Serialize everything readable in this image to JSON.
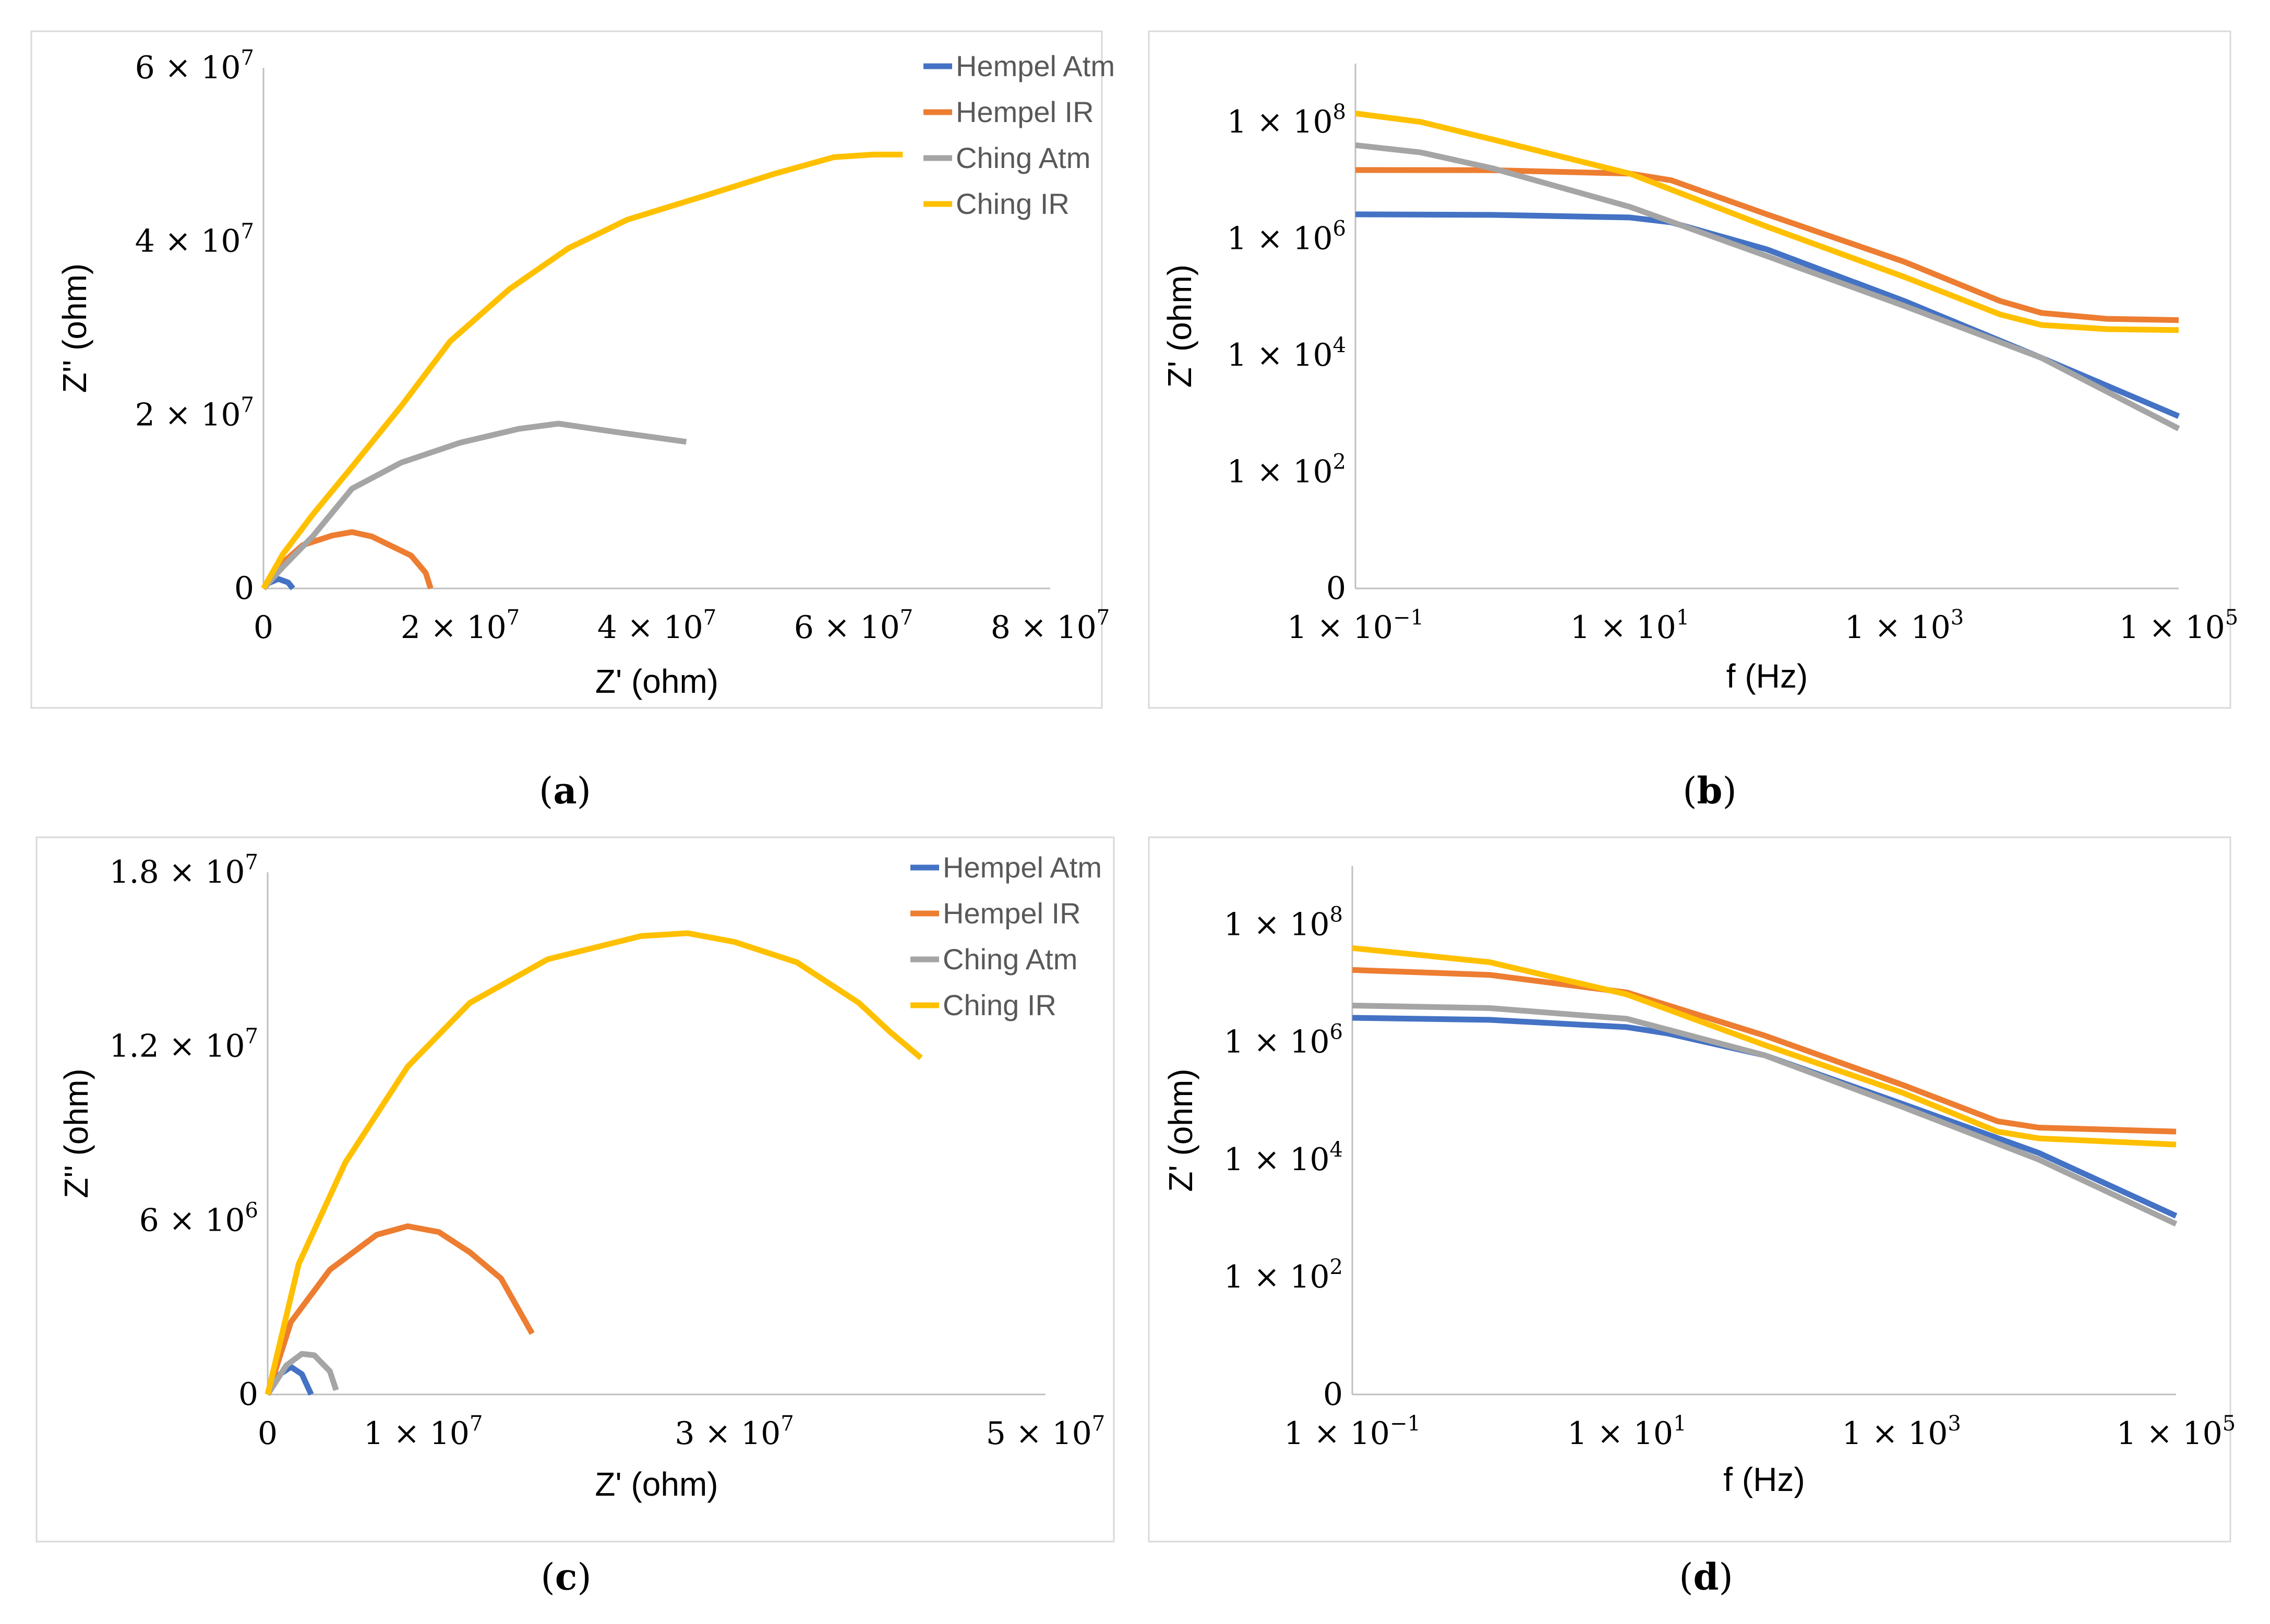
{
  "colors": {
    "Hempel Atm": "#4472c4",
    "Hempel IR": "#ed7d31",
    "Ching Atm": "#a5a5a5",
    "Ching IR": "#ffc000"
  },
  "captions": [
    "a",
    "b",
    "c",
    "d"
  ],
  "chart_data": [
    {
      "id": "a",
      "type": "line",
      "xlabel": "Z' (ohm)",
      "ylabel": "Z'' (ohm)",
      "xlim": [
        0,
        80000000
      ],
      "ylim": [
        0,
        60000000
      ],
      "x_ticks": [
        {
          "value": 0,
          "label": "0",
          "mant": "",
          "exp": ""
        },
        {
          "value": 20000000,
          "label": "",
          "mant": "2 × 10",
          "exp": "7"
        },
        {
          "value": 40000000,
          "label": "",
          "mant": "4 × 10",
          "exp": "7"
        },
        {
          "value": 60000000,
          "label": "",
          "mant": "6 × 10",
          "exp": "7"
        },
        {
          "value": 80000000,
          "label": "",
          "mant": "8 × 10",
          "exp": "7"
        }
      ],
      "y_ticks": [
        {
          "value": 0,
          "label": "0",
          "mant": "",
          "exp": ""
        },
        {
          "value": 20000000,
          "label": "",
          "mant": "2 × 10",
          "exp": "7"
        },
        {
          "value": 40000000,
          "label": "",
          "mant": "4 × 10",
          "exp": "7"
        },
        {
          "value": 60000000,
          "label": "",
          "mant": "6 × 10",
          "exp": "7"
        }
      ],
      "legend": [
        "Hempel Atm",
        "Hempel IR",
        "Ching Atm",
        "Ching IR"
      ],
      "series": [
        {
          "name": "Hempel Atm",
          "points": [
            [
              0,
              0
            ],
            [
              500000,
              600000
            ],
            [
              1500000,
              1100000
            ],
            [
              2500000,
              700000
            ],
            [
              3000000,
              0
            ]
          ]
        },
        {
          "name": "Hempel IR",
          "points": [
            [
              0,
              0
            ],
            [
              1500000,
              2500000
            ],
            [
              4000000,
              5000000
            ],
            [
              7000000,
              6100000
            ],
            [
              9000000,
              6500000
            ],
            [
              11000000,
              6000000
            ],
            [
              13000000,
              4900000
            ],
            [
              15000000,
              3800000
            ],
            [
              16500000,
              1800000
            ],
            [
              17000000,
              0
            ]
          ]
        },
        {
          "name": "Ching Atm",
          "points": [
            [
              0,
              0
            ],
            [
              2000000,
              2500000
            ],
            [
              5000000,
              6000000
            ],
            [
              9000000,
              11500000
            ],
            [
              14000000,
              14500000
            ],
            [
              20000000,
              16800000
            ],
            [
              26000000,
              18400000
            ],
            [
              30000000,
              19000000
            ],
            [
              36000000,
              18000000
            ],
            [
              43000000,
              16900000
            ]
          ]
        },
        {
          "name": "Ching IR",
          "points": [
            [
              0,
              0
            ],
            [
              2000000,
              4000000
            ],
            [
              5000000,
              8500000
            ],
            [
              9000000,
              14000000
            ],
            [
              14000000,
              21000000
            ],
            [
              19000000,
              28500000
            ],
            [
              25000000,
              34500000
            ],
            [
              31000000,
              39200000
            ],
            [
              37000000,
              42500000
            ],
            [
              45000000,
              45300000
            ],
            [
              52000000,
              47800000
            ],
            [
              58000000,
              49700000
            ],
            [
              62000000,
              50000000
            ],
            [
              65000000,
              50000000
            ]
          ]
        }
      ]
    },
    {
      "id": "b",
      "type": "line",
      "xlabel": "f (Hz)",
      "ylabel": "Z' (ohm)",
      "xscale": "log",
      "yscale": "log",
      "xlim": [
        0.1,
        100000
      ],
      "ylim": [
        1,
        1000000000
      ],
      "x_ticks": [
        {
          "value": 0.1,
          "label": "",
          "mant": "1 × 10",
          "exp": "−1"
        },
        {
          "value": 10,
          "label": "",
          "mant": "1 × 10",
          "exp": "1"
        },
        {
          "value": 1000,
          "label": "",
          "mant": "1 × 10",
          "exp": "3"
        },
        {
          "value": 100000,
          "label": "",
          "mant": "1 × 10",
          "exp": "5"
        }
      ],
      "y_ticks": [
        {
          "value": 1,
          "label": "0",
          "mant": "",
          "exp": ""
        },
        {
          "value": 100,
          "label": "",
          "mant": "1 × 10",
          "exp": "2"
        },
        {
          "value": 10000,
          "label": "",
          "mant": "1 × 10",
          "exp": "4"
        },
        {
          "value": 1000000,
          "label": "",
          "mant": "1 × 10",
          "exp": "6"
        },
        {
          "value": 100000000,
          "label": "",
          "mant": "1 × 10",
          "exp": "8"
        }
      ],
      "legend": [],
      "series": [
        {
          "name": "Hempel Atm",
          "points": [
            [
              0.1,
              2600000
            ],
            [
              1,
              2550000
            ],
            [
              10,
              2300000
            ],
            [
              20,
              1900000
            ],
            [
              100,
              650000
            ],
            [
              1000,
              85000
            ],
            [
              10000,
              9000
            ],
            [
              100000,
              900
            ]
          ]
        },
        {
          "name": "Hempel IR",
          "points": [
            [
              0.1,
              15000000
            ],
            [
              1,
              14900000
            ],
            [
              10,
              13000000
            ],
            [
              20,
              10000000
            ],
            [
              100,
              2600000
            ],
            [
              1000,
              400000
            ],
            [
              5000,
              85000
            ],
            [
              10000,
              53000
            ],
            [
              30000,
              42000
            ],
            [
              100000,
              40000
            ]
          ]
        },
        {
          "name": "Ching Atm",
          "points": [
            [
              0.1,
              40000000
            ],
            [
              0.3,
              30000000
            ],
            [
              1,
              16000000
            ],
            [
              10,
              3500000
            ],
            [
              100,
              500000
            ],
            [
              1000,
              70000
            ],
            [
              10000,
              9000
            ],
            [
              100000,
              550
            ]
          ]
        },
        {
          "name": "Ching IR",
          "points": [
            [
              0.1,
              140000000
            ],
            [
              0.3,
              100000000
            ],
            [
              1,
              50000000
            ],
            [
              10,
              13000000
            ],
            [
              100,
              1600000
            ],
            [
              1000,
              220000
            ],
            [
              5000,
              50000
            ],
            [
              10000,
              33000
            ],
            [
              30000,
              28000
            ],
            [
              100000,
              27000
            ]
          ]
        }
      ]
    },
    {
      "id": "c",
      "type": "line",
      "xlabel": "Z' (ohm)",
      "ylabel": "Z'' (ohm)",
      "xlim": [
        0,
        50000000
      ],
      "ylim": [
        0,
        18000000
      ],
      "x_ticks": [
        {
          "value": 0,
          "label": "0",
          "mant": "",
          "exp": ""
        },
        {
          "value": 10000000,
          "label": "",
          "mant": "1 × 10",
          "exp": "7"
        },
        {
          "value": 30000000,
          "label": "",
          "mant": "3 × 10",
          "exp": "7"
        },
        {
          "value": 50000000,
          "label": "",
          "mant": "5 × 10",
          "exp": "7"
        }
      ],
      "y_ticks": [
        {
          "value": 0,
          "label": "0",
          "mant": "",
          "exp": ""
        },
        {
          "value": 6000000,
          "label": "",
          "mant": "6 × 10",
          "exp": "6"
        },
        {
          "value": 12000000,
          "label": "",
          "mant": "1.2 × 10",
          "exp": "7"
        },
        {
          "value": 18000000,
          "label": "",
          "mant": "1.8 × 10",
          "exp": "7"
        }
      ],
      "legend": [
        "Hempel Atm",
        "Hempel IR",
        "Ching Atm",
        "Ching IR"
      ],
      "series": [
        {
          "name": "Hempel Atm",
          "points": [
            [
              0,
              0
            ],
            [
              800000,
              700000
            ],
            [
              1500000,
              950000
            ],
            [
              2200000,
              700000
            ],
            [
              2800000,
              0
            ]
          ]
        },
        {
          "name": "Hempel IR",
          "points": [
            [
              0,
              0
            ],
            [
              1500000,
              2500000
            ],
            [
              4000000,
              4300000
            ],
            [
              7000000,
              5500000
            ],
            [
              9000000,
              5800000
            ],
            [
              11000000,
              5600000
            ],
            [
              13000000,
              4900000
            ],
            [
              15000000,
              4000000
            ],
            [
              17000000,
              2100000
            ]
          ]
        },
        {
          "name": "Ching Atm",
          "points": [
            [
              0,
              0
            ],
            [
              1200000,
              1000000
            ],
            [
              2200000,
              1400000
            ],
            [
              3000000,
              1350000
            ],
            [
              4000000,
              800000
            ],
            [
              4400000,
              150000
            ]
          ]
        },
        {
          "name": "Ching IR",
          "points": [
            [
              0,
              0
            ],
            [
              2000000,
              4500000
            ],
            [
              5000000,
              8000000
            ],
            [
              9000000,
              11300000
            ],
            [
              13000000,
              13500000
            ],
            [
              18000000,
              15000000
            ],
            [
              24000000,
              15800000
            ],
            [
              27000000,
              15900000
            ],
            [
              30000000,
              15600000
            ],
            [
              34000000,
              14900000
            ],
            [
              38000000,
              13500000
            ],
            [
              40000000,
              12500000
            ],
            [
              42000000,
              11600000
            ]
          ]
        }
      ]
    },
    {
      "id": "d",
      "type": "line",
      "xlabel": "f (Hz)",
      "ylabel": "Z' (ohm)",
      "xscale": "log",
      "yscale": "log",
      "xlim": [
        0.1,
        100000
      ],
      "ylim": [
        1,
        1000000000
      ],
      "x_ticks": [
        {
          "value": 0.1,
          "label": "",
          "mant": "1 × 10",
          "exp": "−1"
        },
        {
          "value": 10,
          "label": "",
          "mant": "1 × 10",
          "exp": "1"
        },
        {
          "value": 1000,
          "label": "",
          "mant": "1 × 10",
          "exp": "3"
        },
        {
          "value": 100000,
          "label": "",
          "mant": "1 × 10",
          "exp": "5"
        }
      ],
      "y_ticks": [
        {
          "value": 1,
          "label": "0",
          "mant": "",
          "exp": ""
        },
        {
          "value": 100,
          "label": "",
          "mant": "1 × 10",
          "exp": "2"
        },
        {
          "value": 10000,
          "label": "",
          "mant": "1 × 10",
          "exp": "4"
        },
        {
          "value": 1000000,
          "label": "",
          "mant": "1 × 10",
          "exp": "6"
        },
        {
          "value": 100000000,
          "label": "",
          "mant": "1 × 10",
          "exp": "8"
        }
      ],
      "legend": [],
      "series": [
        {
          "name": "Hempel Atm",
          "points": [
            [
              0.1,
              2600000
            ],
            [
              1,
              2400000
            ],
            [
              10,
              1800000
            ],
            [
              20,
              1400000
            ],
            [
              100,
              600000
            ],
            [
              1000,
              90000
            ],
            [
              10000,
              13000
            ],
            [
              100000,
              1100
            ]
          ]
        },
        {
          "name": "Hempel IR",
          "points": [
            [
              0.1,
              17000000
            ],
            [
              1,
              14000000
            ],
            [
              10,
              7000000
            ],
            [
              100,
              1300000
            ],
            [
              1000,
              190000
            ],
            [
              5000,
              45000
            ],
            [
              10000,
              35000
            ],
            [
              100000,
              30000
            ]
          ]
        },
        {
          "name": "Ching Atm",
          "points": [
            [
              0.1,
              4200000
            ],
            [
              1,
              3800000
            ],
            [
              10,
              2500000
            ],
            [
              100,
              600000
            ],
            [
              1000,
              80000
            ],
            [
              10000,
              10000
            ],
            [
              100000,
              800
            ]
          ]
        },
        {
          "name": "Ching IR",
          "points": [
            [
              0.1,
              40000000
            ],
            [
              1,
              23000000
            ],
            [
              10,
              6500000
            ],
            [
              100,
              900000
            ],
            [
              1000,
              140000
            ],
            [
              5000,
              30000
            ],
            [
              10000,
              23000
            ],
            [
              100000,
              18000
            ]
          ]
        }
      ]
    }
  ]
}
